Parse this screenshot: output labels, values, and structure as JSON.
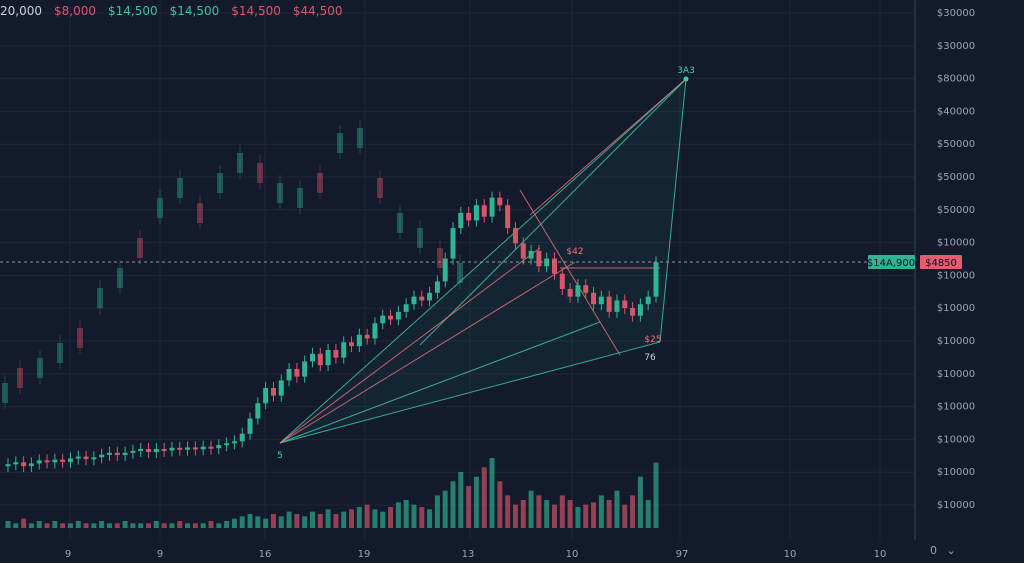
{
  "ticker": [
    {
      "text": "20,000",
      "color": "#c9ced9"
    },
    {
      "text": "$8,000",
      "color": "#e0566b"
    },
    {
      "text": "$14,500",
      "color": "#39c2a0"
    },
    {
      "text": "$14,500",
      "color": "#39c2a0"
    },
    {
      "text": "$14,500",
      "color": "#e0566b"
    },
    {
      "text": "$44,500",
      "color": "#e0566b"
    }
  ],
  "price_tags": {
    "left": "$14A,900",
    "right": "$4850"
  },
  "axis_control": {
    "zero": "0",
    "chevron_icon": "chevron-down-icon"
  },
  "colors": {
    "up": "#2fb592",
    "down": "#d9566a",
    "line_up": "#3ecfa8",
    "line_down": "#f07282"
  },
  "chart_data": {
    "type": "candlestick",
    "title": "",
    "y_axis_labels": [
      "$30000",
      "$30000",
      "$80000",
      "$40000",
      "$50000",
      "$50000",
      "$50000",
      "$10000",
      "$10000",
      "$10000",
      "$10000",
      "$10000",
      "$10000",
      "$10000",
      "$10000",
      "$10000"
    ],
    "x_axis_labels": [
      "9",
      "9",
      "16",
      "19",
      "13",
      "10",
      "97",
      "10",
      "10"
    ],
    "current_price_line": "dashed",
    "grid": true,
    "points": [
      {
        "label": "3A3",
        "color": "#3ecfa8"
      },
      {
        "label": "$42",
        "color": "#f07282"
      },
      {
        "label": "$25",
        "color": "#f07282"
      },
      {
        "label": "5",
        "color": "#3ecfa8"
      },
      {
        "label": "76",
        "color": "#c9ced9"
      }
    ],
    "close_index": [
      18,
      18.5,
      17.5,
      18.2,
      19,
      18.5,
      19.2,
      18.6,
      19.5,
      20,
      19.3,
      19.8,
      20.5,
      21,
      20.4,
      21,
      21.5,
      22,
      21.2,
      22,
      21.6,
      22.3,
      21.8,
      22.4,
      21.9,
      22.6,
      22.2,
      23,
      23.5,
      24,
      26,
      30,
      34,
      38,
      36,
      40,
      43,
      41,
      45,
      47,
      44,
      48,
      46,
      50,
      49,
      52,
      51,
      55,
      57,
      56,
      58,
      60,
      62,
      61,
      63,
      66,
      72,
      80,
      84,
      82,
      86,
      83,
      88,
      86,
      80,
      76,
      72,
      74,
      70,
      72,
      68,
      64,
      62,
      65,
      63,
      60,
      62,
      58,
      61,
      59,
      57,
      60,
      62,
      71
    ],
    "volume": [
      3,
      2,
      4,
      2,
      3,
      2,
      3,
      2,
      2,
      3,
      2,
      2,
      3,
      2,
      2,
      3,
      2,
      2,
      2,
      3,
      2,
      2,
      3,
      2,
      2,
      2,
      3,
      2,
      3,
      4,
      5,
      6,
      5,
      4,
      6,
      5,
      7,
      6,
      5,
      7,
      6,
      8,
      6,
      7,
      8,
      9,
      10,
      8,
      7,
      9,
      11,
      12,
      10,
      9,
      8,
      14,
      16,
      20,
      24,
      18,
      22,
      26,
      30,
      20,
      14,
      10,
      12,
      16,
      14,
      12,
      10,
      14,
      12,
      9,
      10,
      11,
      14,
      12,
      16,
      10,
      14,
      22,
      12,
      28
    ]
  }
}
